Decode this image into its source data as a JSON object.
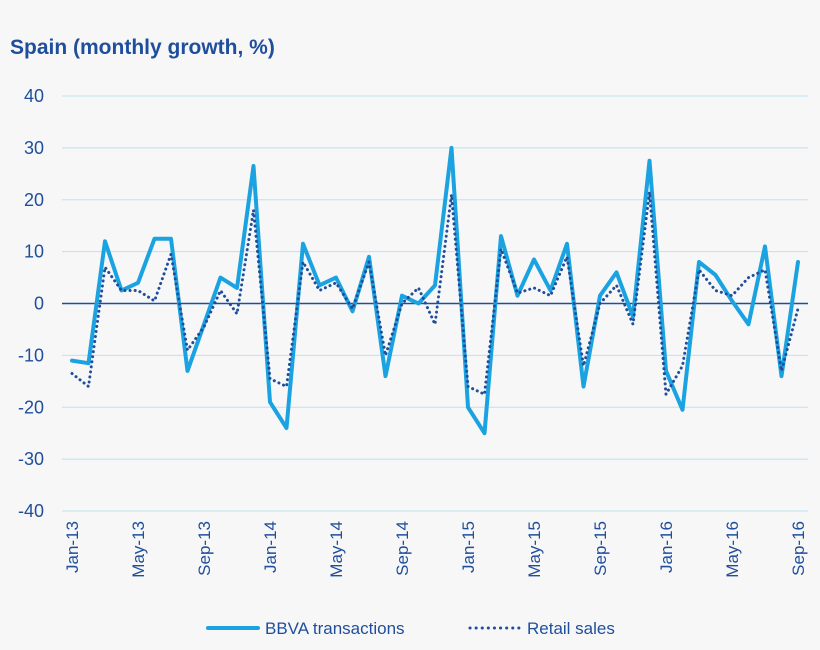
{
  "chart_data": {
    "type": "line",
    "title": "Spain (monthly growth, %)",
    "xlabel": "",
    "ylabel": "",
    "ylim": [
      -40,
      40
    ],
    "yticks": [
      40,
      30,
      20,
      10,
      0,
      -10,
      -20,
      -30,
      -40
    ],
    "grid": true,
    "legend_position": "bottom",
    "x": [
      "Jan-13",
      "Feb-13",
      "Mar-13",
      "Apr-13",
      "May-13",
      "Jun-13",
      "Jul-13",
      "Aug-13",
      "Sep-13",
      "Oct-13",
      "Nov-13",
      "Dec-13",
      "Jan-14",
      "Feb-14",
      "Mar-14",
      "Apr-14",
      "May-14",
      "Jun-14",
      "Jul-14",
      "Aug-14",
      "Sep-14",
      "Oct-14",
      "Nov-14",
      "Dec-14",
      "Jan-15",
      "Feb-15",
      "Mar-15",
      "Apr-15",
      "May-15",
      "Jun-15",
      "Jul-15",
      "Aug-15",
      "Sep-15",
      "Oct-15",
      "Nov-15",
      "Dec-15",
      "Jan-16",
      "Feb-16",
      "Mar-16",
      "Apr-16",
      "May-16",
      "Jun-16",
      "Jul-16",
      "Aug-16",
      "Sep-16"
    ],
    "x_tick_labels": [
      "Jan-13",
      "May-13",
      "Sep-13",
      "Jan-14",
      "May-14",
      "Sep-14",
      "Jan-15",
      "May-15",
      "Sep-15",
      "Jan-16",
      "May-16",
      "Sep-16"
    ],
    "series": [
      {
        "name": "BBVA transactions",
        "color": "#1aa3e0",
        "style": "solid",
        "values": [
          -11,
          -11.5,
          12,
          2.5,
          4,
          12.5,
          12.5,
          -13,
          -4,
          5,
          3,
          26.5,
          -19,
          -24,
          11.5,
          3.5,
          5,
          -1.5,
          9,
          -14,
          1.5,
          0,
          3.5,
          30,
          -20,
          -25,
          13,
          1.5,
          8.5,
          2.5,
          11.5,
          -16,
          1.5,
          6,
          -2.5,
          27.5,
          -13,
          -20.5,
          8,
          5.5,
          0.5,
          -4,
          11,
          -14,
          8
        ]
      },
      {
        "name": "Retail sales",
        "color": "#1f4e9c",
        "style": "dotted",
        "values": [
          -13.5,
          -16,
          7,
          2.5,
          2.5,
          0.5,
          9.5,
          -9,
          -4.5,
          2.5,
          -2,
          18,
          -14.5,
          -16,
          8,
          2.5,
          4,
          -1,
          8,
          -10,
          0,
          3,
          -4,
          21,
          -16,
          -17.5,
          10.5,
          2,
          3,
          1.5,
          9,
          -12,
          0,
          3.5,
          -4,
          21.5,
          -17.5,
          -12,
          6.5,
          2.5,
          1.5,
          5,
          6.5,
          -13,
          -1
        ]
      }
    ]
  }
}
